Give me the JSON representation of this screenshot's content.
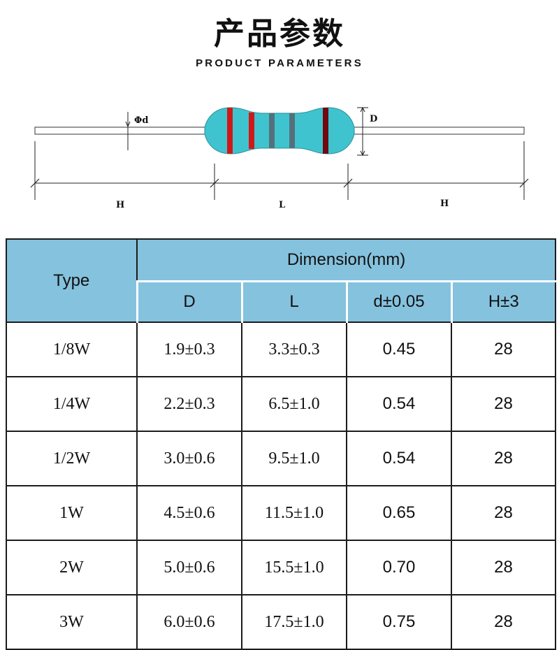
{
  "header": {
    "title": "产品参数",
    "subtitle": "PRODUCT PARAMETERS"
  },
  "diagram": {
    "labels": {
      "lead_diameter": "Φd",
      "body_diameter": "D",
      "lead_length_left": "H",
      "body_length": "L",
      "lead_length_right": "H"
    },
    "colors": {
      "body": "#3fc4cf",
      "band_red": "#d01818",
      "band_gray": "#55707a",
      "band_dark_red": "#6e0a10",
      "lead": "#ffffff"
    }
  },
  "table": {
    "type_header": "Type",
    "dimension_header": "Dimension(mm)",
    "sub_headers": [
      "D",
      "L",
      "d±0.05",
      "H±3"
    ],
    "rows": [
      {
        "type": "1/8W",
        "D": "1.9±0.3",
        "L": "3.3±0.3",
        "d": "0.45",
        "H": "28"
      },
      {
        "type": "1/4W",
        "D": "2.2±0.3",
        "L": "6.5±1.0",
        "d": "0.54",
        "H": "28"
      },
      {
        "type": "1/2W",
        "D": "3.0±0.6",
        "L": "9.5±1.0",
        "d": "0.54",
        "H": "28"
      },
      {
        "type": "1W",
        "D": "4.5±0.6",
        "L": "11.5±1.0",
        "d": "0.65",
        "H": "28"
      },
      {
        "type": "2W",
        "D": "5.0±0.6",
        "L": "15.5±1.0",
        "d": "0.70",
        "H": "28"
      },
      {
        "type": "3W",
        "D": "6.0±0.6",
        "L": "17.5±1.0",
        "d": "0.75",
        "H": "28"
      }
    ],
    "header_color": "#85c2de"
  }
}
